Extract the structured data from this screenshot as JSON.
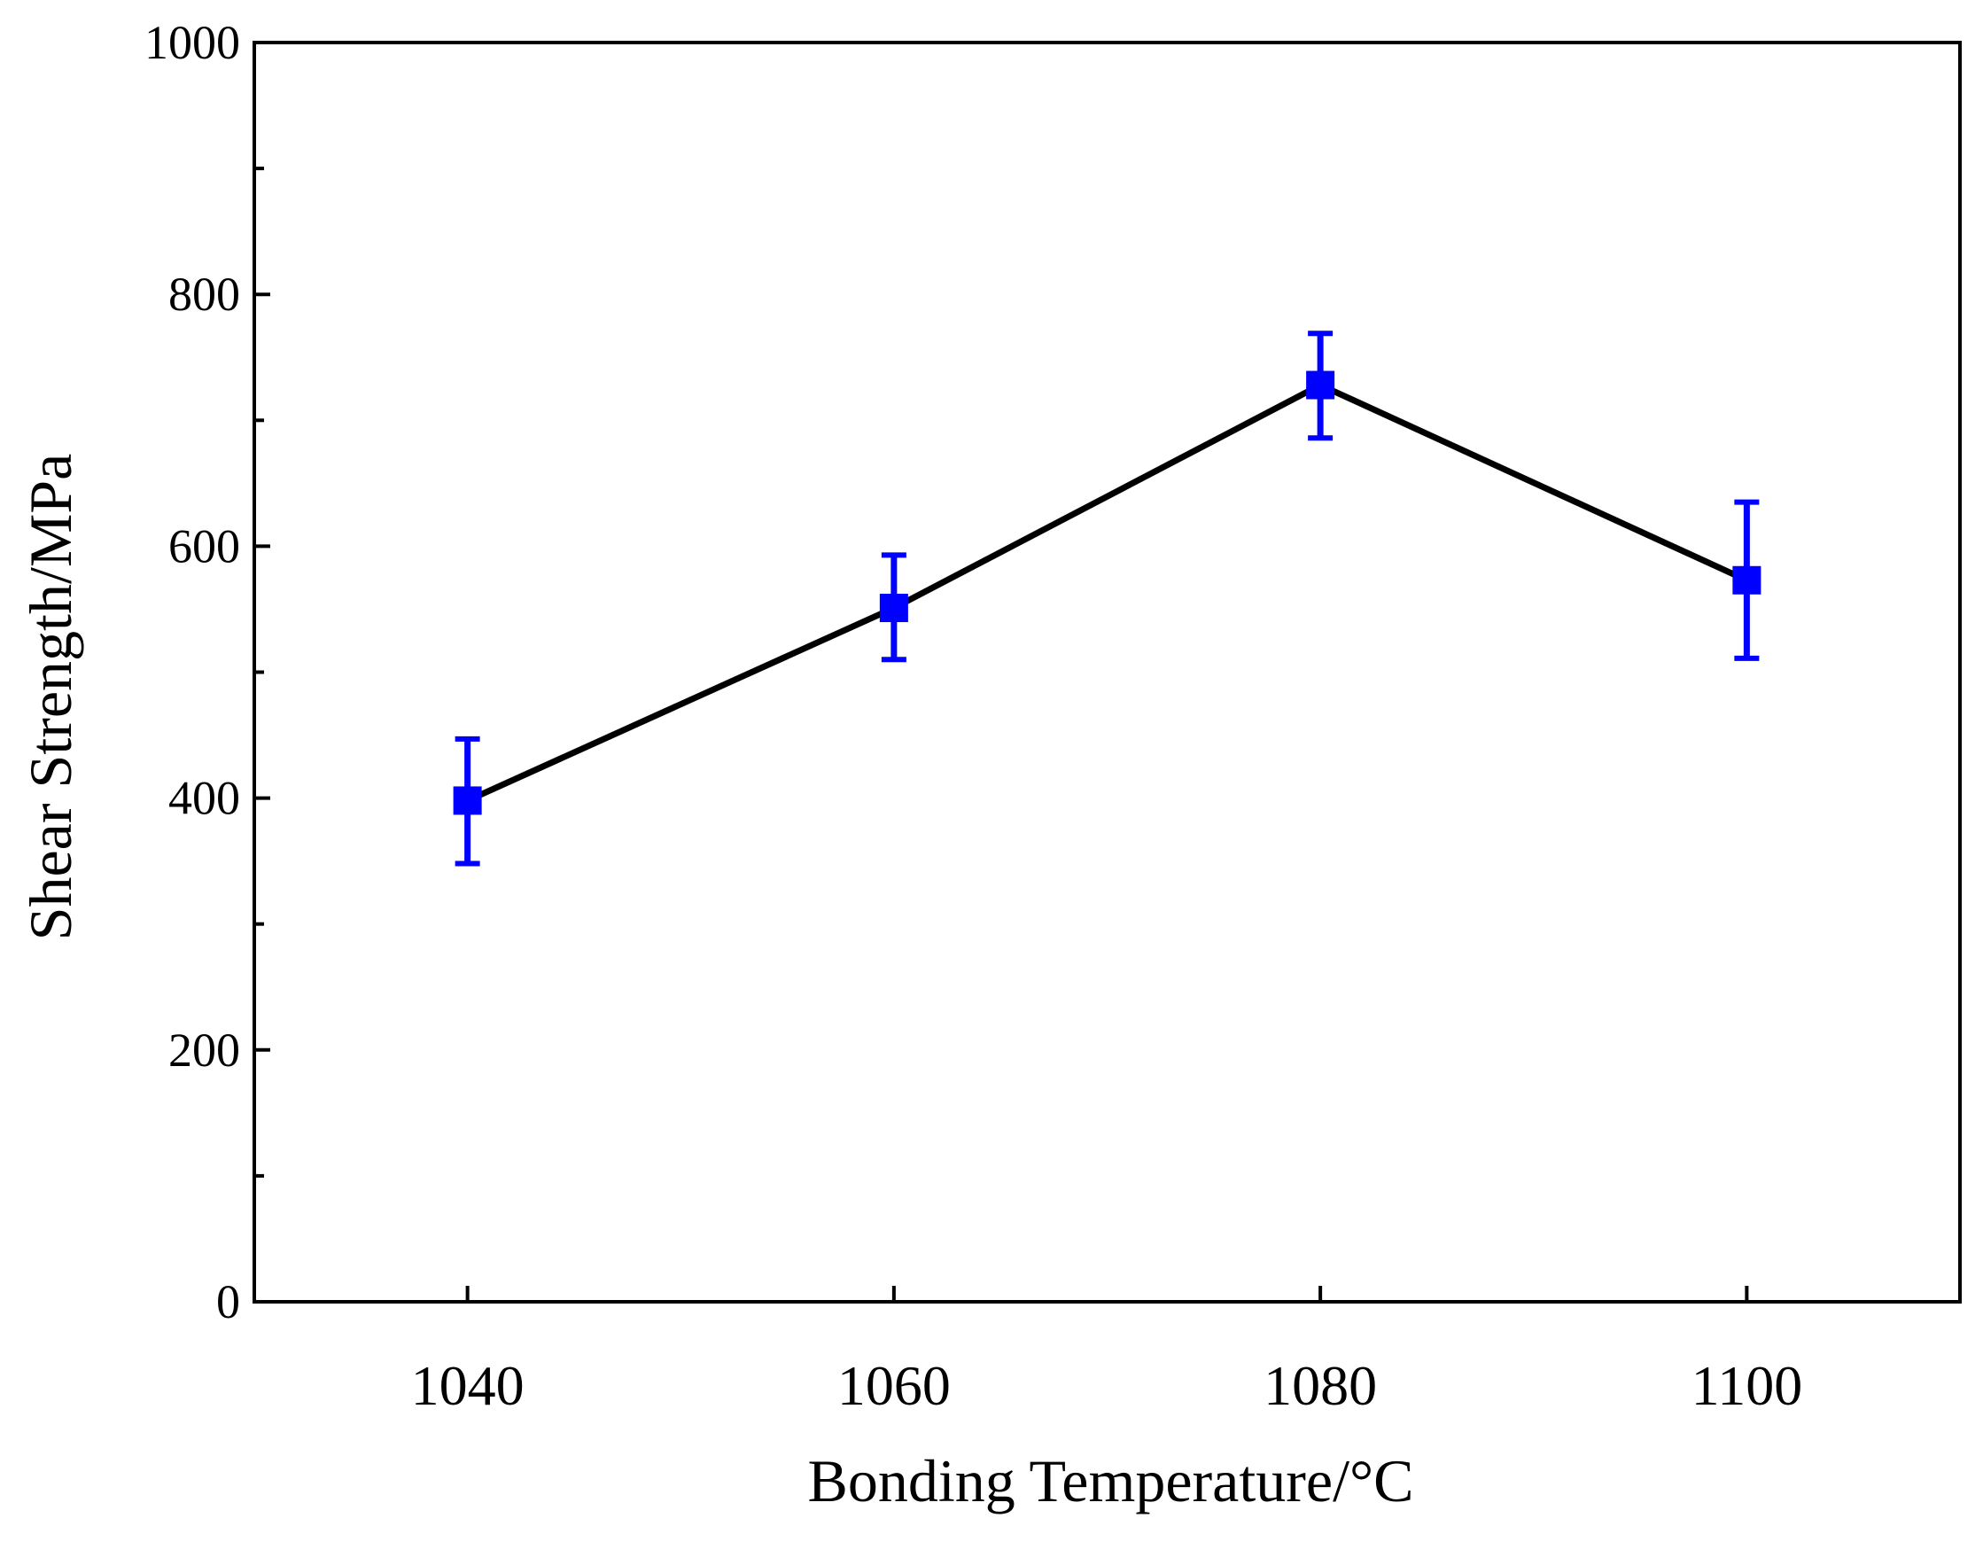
{
  "chart_data": {
    "type": "line",
    "title": "",
    "xlabel": "Bonding Temperature/°C",
    "ylabel": "Shear Strength/MPa",
    "xlim": [
      1030,
      1110
    ],
    "ylim": [
      0,
      1000
    ],
    "x_ticks": [
      1040,
      1060,
      1080,
      1100
    ],
    "y_major_ticks": [
      0,
      200,
      400,
      600,
      800,
      1000
    ],
    "y_minor_ticks": [
      100,
      300,
      500,
      700,
      900
    ],
    "x_tick_labels": [
      "1040",
      "1060",
      "1080",
      "1100"
    ],
    "y_tick_labels": [
      "0",
      "200",
      "400",
      "600",
      "800",
      "1000"
    ],
    "grid": false,
    "legend": "none",
    "series": [
      {
        "name": "Shear Strength",
        "line_color": "#000000",
        "marker_color": "#0000ff",
        "marker": "square",
        "x": [
          1040,
          1060,
          1080,
          1100
        ],
        "y": [
          398,
          551,
          728,
          573
        ],
        "err_low": [
          348,
          510,
          686,
          511
        ],
        "err_high": [
          447,
          593,
          769,
          635
        ]
      }
    ]
  }
}
